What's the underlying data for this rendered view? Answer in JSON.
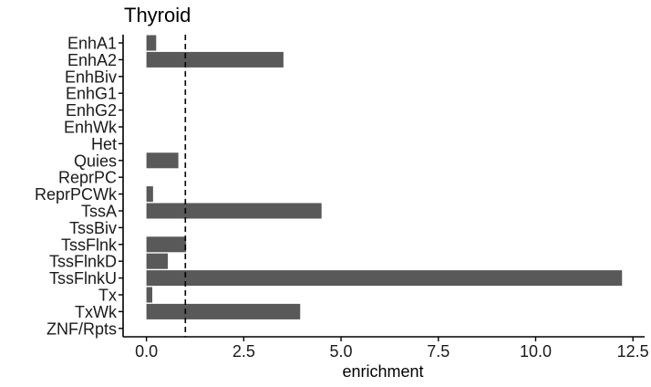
{
  "chart_data": {
    "type": "bar",
    "orientation": "horizontal",
    "title": "Thyroid",
    "xlabel": "enrichment",
    "ylabel": "",
    "categories": [
      "EnhA1",
      "EnhA2",
      "EnhBiv",
      "EnhG1",
      "EnhG2",
      "EnhWk",
      "Het",
      "Quies",
      "ReprPC",
      "ReprPCWk",
      "TssA",
      "TssBiv",
      "TssFlnk",
      "TssFlnkD",
      "TssFlnkU",
      "Tx",
      "TxWk",
      "ZNF/Rpts"
    ],
    "values": [
      0.25,
      3.52,
      0,
      0,
      0,
      0,
      0,
      0.82,
      0,
      0.17,
      4.5,
      0,
      1.02,
      0.55,
      12.22,
      0.15,
      3.95,
      0
    ],
    "xlim": [
      -0.6,
      12.8
    ],
    "xticks": [
      0.0,
      2.5,
      5.0,
      7.5,
      10.0,
      12.5
    ],
    "xtick_labels": [
      "0.0",
      "2.5",
      "5.0",
      "7.5",
      "10.0",
      "12.5"
    ],
    "reference_line": 1.0,
    "grid": false,
    "bar_color": "#595959"
  }
}
